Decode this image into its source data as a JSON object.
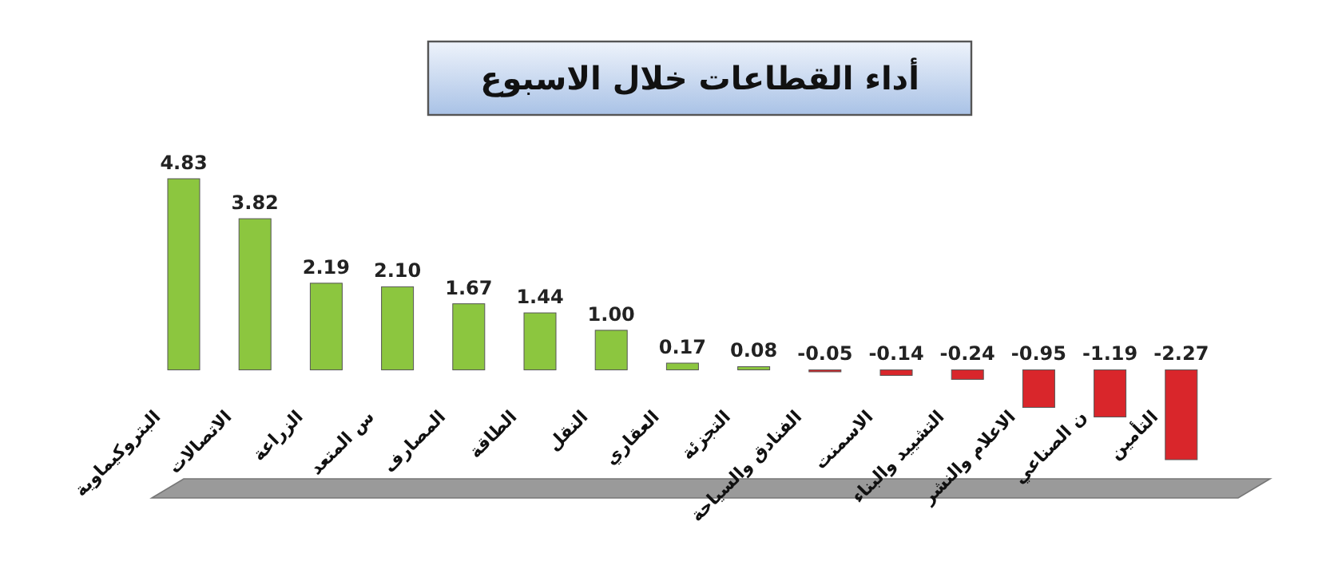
{
  "chart_data": {
    "type": "bar",
    "title": "أداء القطاعات خلال الاسبوع",
    "categories": [
      "البتروكيماوية",
      "الاتصالات",
      "الزراعة",
      "س المتعد",
      "المصارف",
      "الطاقة",
      "النقل",
      "العقاري",
      "التجزئة",
      "الفنادق والسياحة",
      "الاسمنت",
      "التشييد والبناء",
      "الاعلام والنشر",
      "ن الصناعي",
      "التأمين"
    ],
    "values": [
      4.83,
      3.82,
      2.19,
      2.1,
      1.67,
      1.44,
      1.0,
      0.17,
      0.08,
      -0.05,
      -0.14,
      -0.24,
      -0.95,
      -1.19,
      -2.27
    ],
    "colors": [
      "#8cc63f",
      "#8cc63f",
      "#8cc63f",
      "#8cc63f",
      "#8cc63f",
      "#8cc63f",
      "#8cc63f",
      "#8cc63f",
      "#8cc63f",
      "#d9262b",
      "#d9262b",
      "#d9262b",
      "#d9262b",
      "#d9262b",
      "#d9262b"
    ],
    "value_labels": [
      "4.83",
      "3.82",
      "2.19",
      "2.10",
      "1.67",
      "1.44",
      "1.00",
      "0.17",
      "0.08",
      "-0.05",
      "-0.14",
      "-0.24",
      "-0.95",
      "-1.19",
      "-2.27"
    ]
  }
}
